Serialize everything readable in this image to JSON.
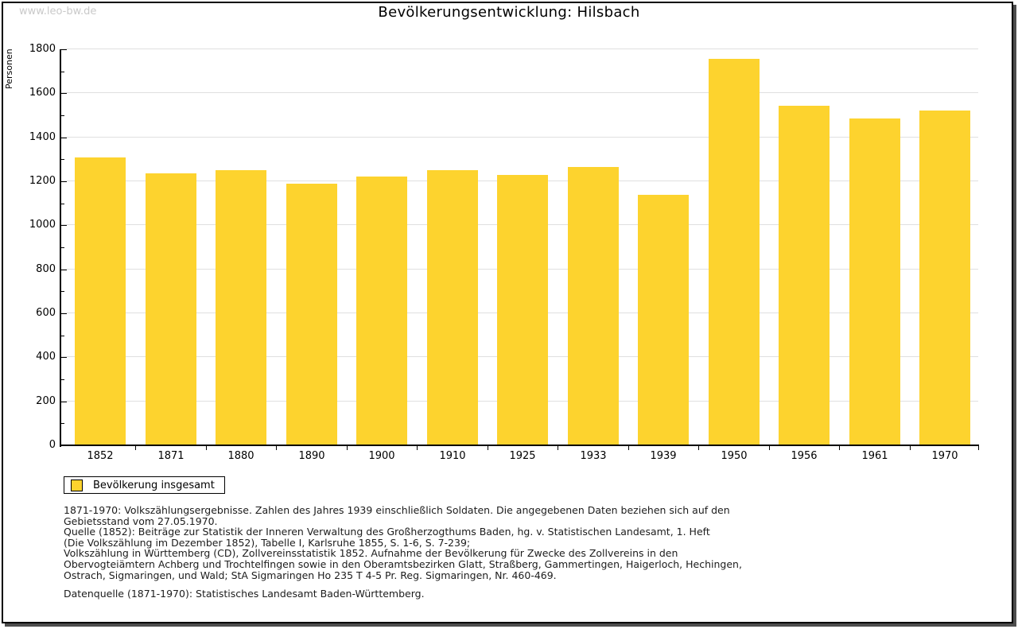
{
  "page": {
    "watermark": "www.leo-bw.de"
  },
  "chart_data": {
    "type": "bar",
    "title": "Bevölkerungsentwicklung: Hilsbach",
    "ylabel": "Personen",
    "xlabel": "",
    "categories": [
      "1852",
      "1871",
      "1880",
      "1890",
      "1900",
      "1910",
      "1925",
      "1933",
      "1939",
      "1950",
      "1956",
      "1961",
      "1970"
    ],
    "values": [
      1310,
      1235,
      1250,
      1190,
      1220,
      1250,
      1230,
      1265,
      1140,
      1755,
      1545,
      1485,
      1520
    ],
    "series_name": "Bevölkerung insgesamt",
    "ylim": [
      0,
      1800
    ],
    "y_major_step": 200,
    "y_minor_step": 100,
    "grid": "horizontal-major",
    "legend_position": "bottom-left",
    "bar_color": "#FDD32E"
  },
  "legend": {
    "label": "Bevölkerung insgesamt"
  },
  "footnotes": {
    "lines": [
      "1871-1970: Volkszählungsergebnisse. Zahlen des Jahres 1939 einschließlich Soldaten. Die angegebenen Daten beziehen sich auf den",
      "Gebietsstand vom 27.05.1970.",
      "Quelle (1852): Beiträge zur Statistik der Inneren Verwaltung des Großherzogthums Baden, hg. v. Statistischen Landesamt, 1. Heft",
      "(Die Volkszählung im Dezember 1852), Tabelle I, Karlsruhe 1855, S. 1-6, S. 7-239;",
      "Volkszählung in Württemberg (CD), Zollvereinsstatistik 1852. Aufnahme der Bevölkerung für Zwecke des Zollvereins in den",
      "Obervogteiämtern Achberg und Trochtelfingen sowie in den Oberamtsbezirken Glatt, Straßberg, Gammertingen, Haigerloch, Hechingen,",
      "Ostrach, Sigmaringen, und Wald; StA Sigmaringen Ho 235 T 4-5 Pr. Reg. Sigmaringen, Nr. 460-469."
    ],
    "datasource": "Datenquelle (1871-1970): Statistisches Landesamt Baden-Württemberg."
  },
  "colors": {
    "bar": "#FDD32E",
    "grid": "#e0e0e0",
    "axis": "#000000",
    "text": "#1c1c1c",
    "watermark": "#c9c9c9",
    "frame_shadow": "#4d4d4d"
  }
}
